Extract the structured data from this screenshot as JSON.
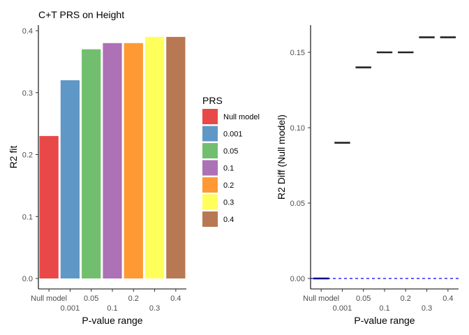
{
  "chart_data": [
    {
      "type": "bar",
      "title": "C+T PRS on Height",
      "xlabel": "P-value range",
      "ylabel": "R2 fit",
      "categories": [
        "Null model",
        "0.001",
        "0.05",
        "0.1",
        "0.2",
        "0.3",
        "0.4"
      ],
      "values": [
        0.23,
        0.32,
        0.37,
        0.38,
        0.38,
        0.39,
        0.39
      ],
      "colors": [
        "#E41A1C",
        "#377EB8",
        "#4DAF4A",
        "#984EA3",
        "#FF7F00",
        "#FFFF33",
        "#A65628"
      ],
      "bar_alpha": 0.8,
      "ylim": [
        0,
        0.4
      ],
      "yticks": [
        "0.0",
        "0.1",
        "0.2",
        "0.3",
        "0.4"
      ],
      "yticks_values": [
        0,
        0.1,
        0.2,
        0.3,
        0.4
      ],
      "grid": false,
      "legend": {
        "title": "PRS",
        "placement": "right"
      }
    },
    {
      "type": "scatter",
      "marker": "crossbar",
      "xlabel": "P-value range",
      "ylabel": "R2 Diff (Null model)",
      "categories": [
        "Null model",
        "0.001",
        "0.05",
        "0.1",
        "0.2",
        "0.3",
        "0.4"
      ],
      "values": [
        0.0,
        0.09,
        0.14,
        0.15,
        0.15,
        0.16,
        0.16
      ],
      "ylim": [
        0,
        0.165
      ],
      "yticks": [
        "0.00",
        "0.05",
        "0.10",
        "0.15"
      ],
      "yticks_values": [
        0,
        0.05,
        0.1,
        0.15
      ],
      "reference_line": {
        "y": 0,
        "style": "dashed",
        "color": "#0000FF"
      },
      "null_marker_color": "#00008B",
      "marker_color": "#222222",
      "grid": false
    }
  ]
}
